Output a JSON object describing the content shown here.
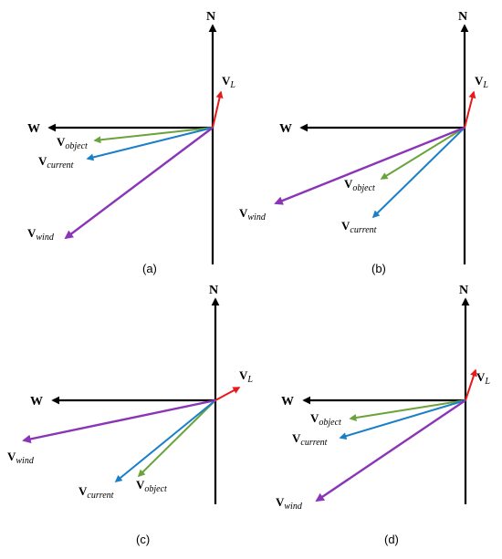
{
  "colors": {
    "axis": "#000000",
    "v_l": "#e8191b",
    "v_object": "#6aa33a",
    "v_current": "#1a7fc9",
    "v_wind": "#8a35b8"
  },
  "compass": {
    "north": "N",
    "west": "W"
  },
  "vector_labels": {
    "v_l": {
      "main": "V",
      "sub": "L"
    },
    "v_object": {
      "main": "V",
      "sub": "object"
    },
    "v_current": {
      "main": "V",
      "sub": "current"
    },
    "v_wind": {
      "main": "V",
      "sub": "wind"
    }
  },
  "panels": [
    {
      "id": "a",
      "label": "(a)"
    },
    {
      "id": "b",
      "label": "(b)"
    },
    {
      "id": "c",
      "label": "(c)"
    },
    {
      "id": "d",
      "label": "(d)"
    }
  ]
}
